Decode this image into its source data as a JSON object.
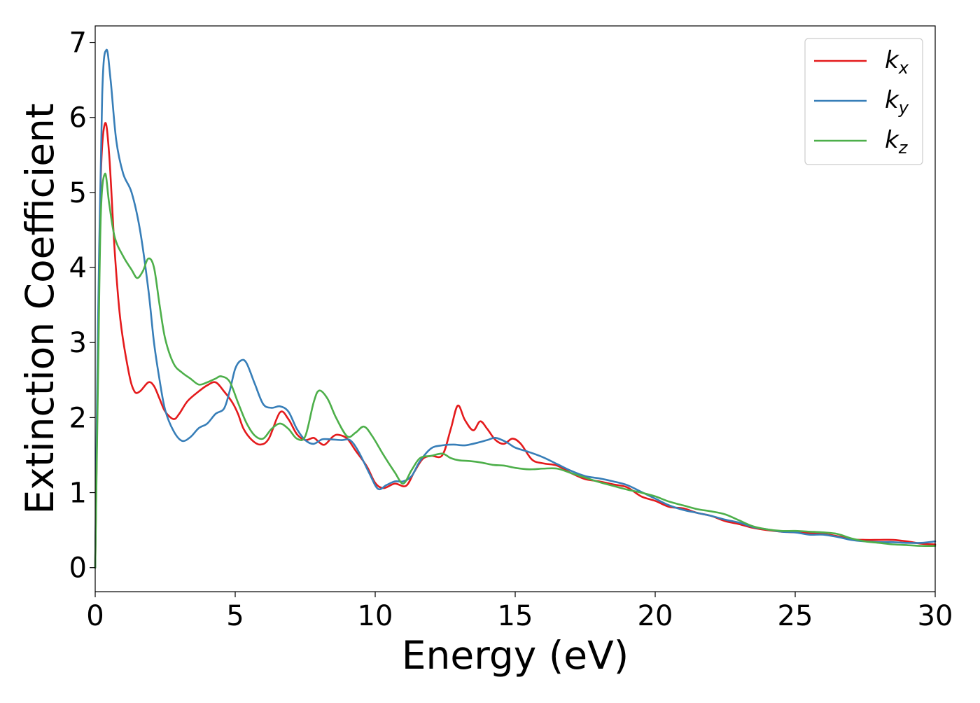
{
  "chart_data": {
    "type": "line",
    "title": "",
    "xlabel": "Energy (eV)",
    "ylabel": "Extinction Coefficient",
    "xlim": [
      0,
      30
    ],
    "ylim": [
      -0.32,
      7.22
    ],
    "xticks": [
      0,
      5,
      10,
      15,
      20,
      25,
      30
    ],
    "yticks": [
      0,
      1,
      2,
      3,
      4,
      5,
      6,
      7
    ],
    "grid": false,
    "legend_position": "top-right",
    "series": [
      {
        "name": "k_x",
        "legend_base": "k",
        "legend_sub": "x",
        "color": "#e41a1c",
        "points": [
          [
            0,
            0
          ],
          [
            0.1,
            2.8
          ],
          [
            0.2,
            5.2
          ],
          [
            0.35,
            5.92
          ],
          [
            0.5,
            5.5
          ],
          [
            0.7,
            4.2
          ],
          [
            0.9,
            3.3
          ],
          [
            1.2,
            2.6
          ],
          [
            1.4,
            2.35
          ],
          [
            1.6,
            2.35
          ],
          [
            1.9,
            2.47
          ],
          [
            2.1,
            2.42
          ],
          [
            2.3,
            2.25
          ],
          [
            2.5,
            2.08
          ],
          [
            2.8,
            1.98
          ],
          [
            3.0,
            2.05
          ],
          [
            3.3,
            2.22
          ],
          [
            3.7,
            2.35
          ],
          [
            4.0,
            2.43
          ],
          [
            4.3,
            2.47
          ],
          [
            4.6,
            2.35
          ],
          [
            4.9,
            2.2
          ],
          [
            5.1,
            2.05
          ],
          [
            5.3,
            1.85
          ],
          [
            5.6,
            1.7
          ],
          [
            5.9,
            1.64
          ],
          [
            6.2,
            1.72
          ],
          [
            6.6,
            2.07
          ],
          [
            6.9,
            1.98
          ],
          [
            7.2,
            1.78
          ],
          [
            7.5,
            1.7
          ],
          [
            7.8,
            1.73
          ],
          [
            8.0,
            1.67
          ],
          [
            8.2,
            1.64
          ],
          [
            8.5,
            1.75
          ],
          [
            8.7,
            1.77
          ],
          [
            9.0,
            1.72
          ],
          [
            9.3,
            1.56
          ],
          [
            9.7,
            1.35
          ],
          [
            10.0,
            1.13
          ],
          [
            10.3,
            1.06
          ],
          [
            10.7,
            1.12
          ],
          [
            11.1,
            1.09
          ],
          [
            11.4,
            1.28
          ],
          [
            11.7,
            1.45
          ],
          [
            12.0,
            1.49
          ],
          [
            12.4,
            1.5
          ],
          [
            12.7,
            1.85
          ],
          [
            12.95,
            2.16
          ],
          [
            13.2,
            1.97
          ],
          [
            13.5,
            1.83
          ],
          [
            13.75,
            1.95
          ],
          [
            14.0,
            1.85
          ],
          [
            14.3,
            1.7
          ],
          [
            14.6,
            1.65
          ],
          [
            14.9,
            1.72
          ],
          [
            15.2,
            1.65
          ],
          [
            15.6,
            1.44
          ],
          [
            16.0,
            1.39
          ],
          [
            16.5,
            1.36
          ],
          [
            17.0,
            1.26
          ],
          [
            17.5,
            1.18
          ],
          [
            18.0,
            1.15
          ],
          [
            18.5,
            1.11
          ],
          [
            19.0,
            1.07
          ],
          [
            19.5,
            0.95
          ],
          [
            20.0,
            0.89
          ],
          [
            20.5,
            0.81
          ],
          [
            21.0,
            0.79
          ],
          [
            21.5,
            0.73
          ],
          [
            22.0,
            0.69
          ],
          [
            22.5,
            0.62
          ],
          [
            23.0,
            0.58
          ],
          [
            23.5,
            0.53
          ],
          [
            24.0,
            0.5
          ],
          [
            24.5,
            0.48
          ],
          [
            25.0,
            0.47
          ],
          [
            25.5,
            0.46
          ],
          [
            26.0,
            0.45
          ],
          [
            26.5,
            0.42
          ],
          [
            27.0,
            0.38
          ],
          [
            27.5,
            0.37
          ],
          [
            28.0,
            0.37
          ],
          [
            28.5,
            0.37
          ],
          [
            29.0,
            0.35
          ],
          [
            29.5,
            0.32
          ],
          [
            30.0,
            0.31
          ]
        ]
      },
      {
        "name": "k_y",
        "legend_base": "k",
        "legend_sub": "y",
        "color": "#377eb8",
        "points": [
          [
            0,
            0
          ],
          [
            0.1,
            3.2
          ],
          [
            0.25,
            6.3
          ],
          [
            0.4,
            6.9
          ],
          [
            0.55,
            6.5
          ],
          [
            0.75,
            5.7
          ],
          [
            1.0,
            5.25
          ],
          [
            1.3,
            5.0
          ],
          [
            1.6,
            4.5
          ],
          [
            1.9,
            3.7
          ],
          [
            2.1,
            3.0
          ],
          [
            2.3,
            2.5
          ],
          [
            2.5,
            2.1
          ],
          [
            2.8,
            1.82
          ],
          [
            3.1,
            1.69
          ],
          [
            3.4,
            1.74
          ],
          [
            3.7,
            1.86
          ],
          [
            4.0,
            1.92
          ],
          [
            4.3,
            2.05
          ],
          [
            4.6,
            2.12
          ],
          [
            4.8,
            2.35
          ],
          [
            5.0,
            2.65
          ],
          [
            5.2,
            2.76
          ],
          [
            5.4,
            2.73
          ],
          [
            5.7,
            2.45
          ],
          [
            6.0,
            2.18
          ],
          [
            6.3,
            2.13
          ],
          [
            6.6,
            2.15
          ],
          [
            6.9,
            2.08
          ],
          [
            7.2,
            1.85
          ],
          [
            7.5,
            1.7
          ],
          [
            7.8,
            1.65
          ],
          [
            8.1,
            1.71
          ],
          [
            8.4,
            1.71
          ],
          [
            8.8,
            1.7
          ],
          [
            9.1,
            1.7
          ],
          [
            9.4,
            1.55
          ],
          [
            9.8,
            1.25
          ],
          [
            10.1,
            1.05
          ],
          [
            10.4,
            1.1
          ],
          [
            10.7,
            1.15
          ],
          [
            11.0,
            1.15
          ],
          [
            11.3,
            1.22
          ],
          [
            11.6,
            1.42
          ],
          [
            12.0,
            1.59
          ],
          [
            12.4,
            1.63
          ],
          [
            12.8,
            1.64
          ],
          [
            13.2,
            1.63
          ],
          [
            13.6,
            1.66
          ],
          [
            14.0,
            1.7
          ],
          [
            14.3,
            1.73
          ],
          [
            14.7,
            1.67
          ],
          [
            15.0,
            1.6
          ],
          [
            15.5,
            1.54
          ],
          [
            16.0,
            1.47
          ],
          [
            16.5,
            1.38
          ],
          [
            17.0,
            1.29
          ],
          [
            17.5,
            1.22
          ],
          [
            18.0,
            1.19
          ],
          [
            18.5,
            1.15
          ],
          [
            19.0,
            1.1
          ],
          [
            19.5,
            1.01
          ],
          [
            20.0,
            0.92
          ],
          [
            20.5,
            0.83
          ],
          [
            21.0,
            0.77
          ],
          [
            21.5,
            0.73
          ],
          [
            22.0,
            0.69
          ],
          [
            22.5,
            0.64
          ],
          [
            23.0,
            0.6
          ],
          [
            23.5,
            0.54
          ],
          [
            24.0,
            0.51
          ],
          [
            24.5,
            0.48
          ],
          [
            25.0,
            0.47
          ],
          [
            25.5,
            0.44
          ],
          [
            26.0,
            0.44
          ],
          [
            26.5,
            0.41
          ],
          [
            27.0,
            0.37
          ],
          [
            27.5,
            0.35
          ],
          [
            28.0,
            0.34
          ],
          [
            28.5,
            0.34
          ],
          [
            29.0,
            0.33
          ],
          [
            29.5,
            0.33
          ],
          [
            30.0,
            0.35
          ]
        ]
      },
      {
        "name": "k_z",
        "legend_base": "k",
        "legend_sub": "z",
        "color": "#4daf4a",
        "points": [
          [
            0,
            0
          ],
          [
            0.1,
            2.5
          ],
          [
            0.2,
            4.7
          ],
          [
            0.35,
            5.25
          ],
          [
            0.5,
            4.85
          ],
          [
            0.7,
            4.4
          ],
          [
            1.0,
            4.15
          ],
          [
            1.3,
            3.97
          ],
          [
            1.5,
            3.86
          ],
          [
            1.7,
            3.95
          ],
          [
            1.9,
            4.12
          ],
          [
            2.1,
            4.0
          ],
          [
            2.3,
            3.5
          ],
          [
            2.5,
            3.05
          ],
          [
            2.8,
            2.72
          ],
          [
            3.1,
            2.6
          ],
          [
            3.4,
            2.52
          ],
          [
            3.7,
            2.44
          ],
          [
            4.0,
            2.47
          ],
          [
            4.3,
            2.52
          ],
          [
            4.5,
            2.55
          ],
          [
            4.8,
            2.48
          ],
          [
            5.1,
            2.2
          ],
          [
            5.4,
            1.93
          ],
          [
            5.7,
            1.76
          ],
          [
            6.0,
            1.72
          ],
          [
            6.3,
            1.85
          ],
          [
            6.6,
            1.92
          ],
          [
            6.9,
            1.85
          ],
          [
            7.2,
            1.72
          ],
          [
            7.5,
            1.75
          ],
          [
            7.8,
            2.2
          ],
          [
            8.0,
            2.36
          ],
          [
            8.3,
            2.25
          ],
          [
            8.6,
            2.0
          ],
          [
            9.0,
            1.75
          ],
          [
            9.3,
            1.8
          ],
          [
            9.6,
            1.88
          ],
          [
            9.9,
            1.75
          ],
          [
            10.3,
            1.5
          ],
          [
            10.7,
            1.27
          ],
          [
            11.0,
            1.12
          ],
          [
            11.3,
            1.3
          ],
          [
            11.6,
            1.46
          ],
          [
            12.0,
            1.49
          ],
          [
            12.4,
            1.52
          ],
          [
            12.7,
            1.46
          ],
          [
            13.0,
            1.43
          ],
          [
            13.4,
            1.42
          ],
          [
            13.8,
            1.4
          ],
          [
            14.2,
            1.37
          ],
          [
            14.6,
            1.36
          ],
          [
            15.0,
            1.33
          ],
          [
            15.5,
            1.31
          ],
          [
            16.0,
            1.32
          ],
          [
            16.5,
            1.32
          ],
          [
            17.0,
            1.26
          ],
          [
            17.5,
            1.2
          ],
          [
            18.0,
            1.14
          ],
          [
            18.5,
            1.09
          ],
          [
            19.0,
            1.04
          ],
          [
            19.5,
            1.0
          ],
          [
            20.0,
            0.95
          ],
          [
            20.5,
            0.88
          ],
          [
            21.0,
            0.83
          ],
          [
            21.5,
            0.78
          ],
          [
            22.0,
            0.75
          ],
          [
            22.5,
            0.71
          ],
          [
            23.0,
            0.63
          ],
          [
            23.5,
            0.55
          ],
          [
            24.0,
            0.51
          ],
          [
            24.5,
            0.49
          ],
          [
            25.0,
            0.49
          ],
          [
            25.5,
            0.48
          ],
          [
            26.0,
            0.47
          ],
          [
            26.5,
            0.45
          ],
          [
            27.0,
            0.39
          ],
          [
            27.5,
            0.35
          ],
          [
            28.0,
            0.33
          ],
          [
            28.5,
            0.31
          ],
          [
            29.0,
            0.3
          ],
          [
            29.5,
            0.29
          ],
          [
            30.0,
            0.29
          ]
        ]
      }
    ]
  }
}
